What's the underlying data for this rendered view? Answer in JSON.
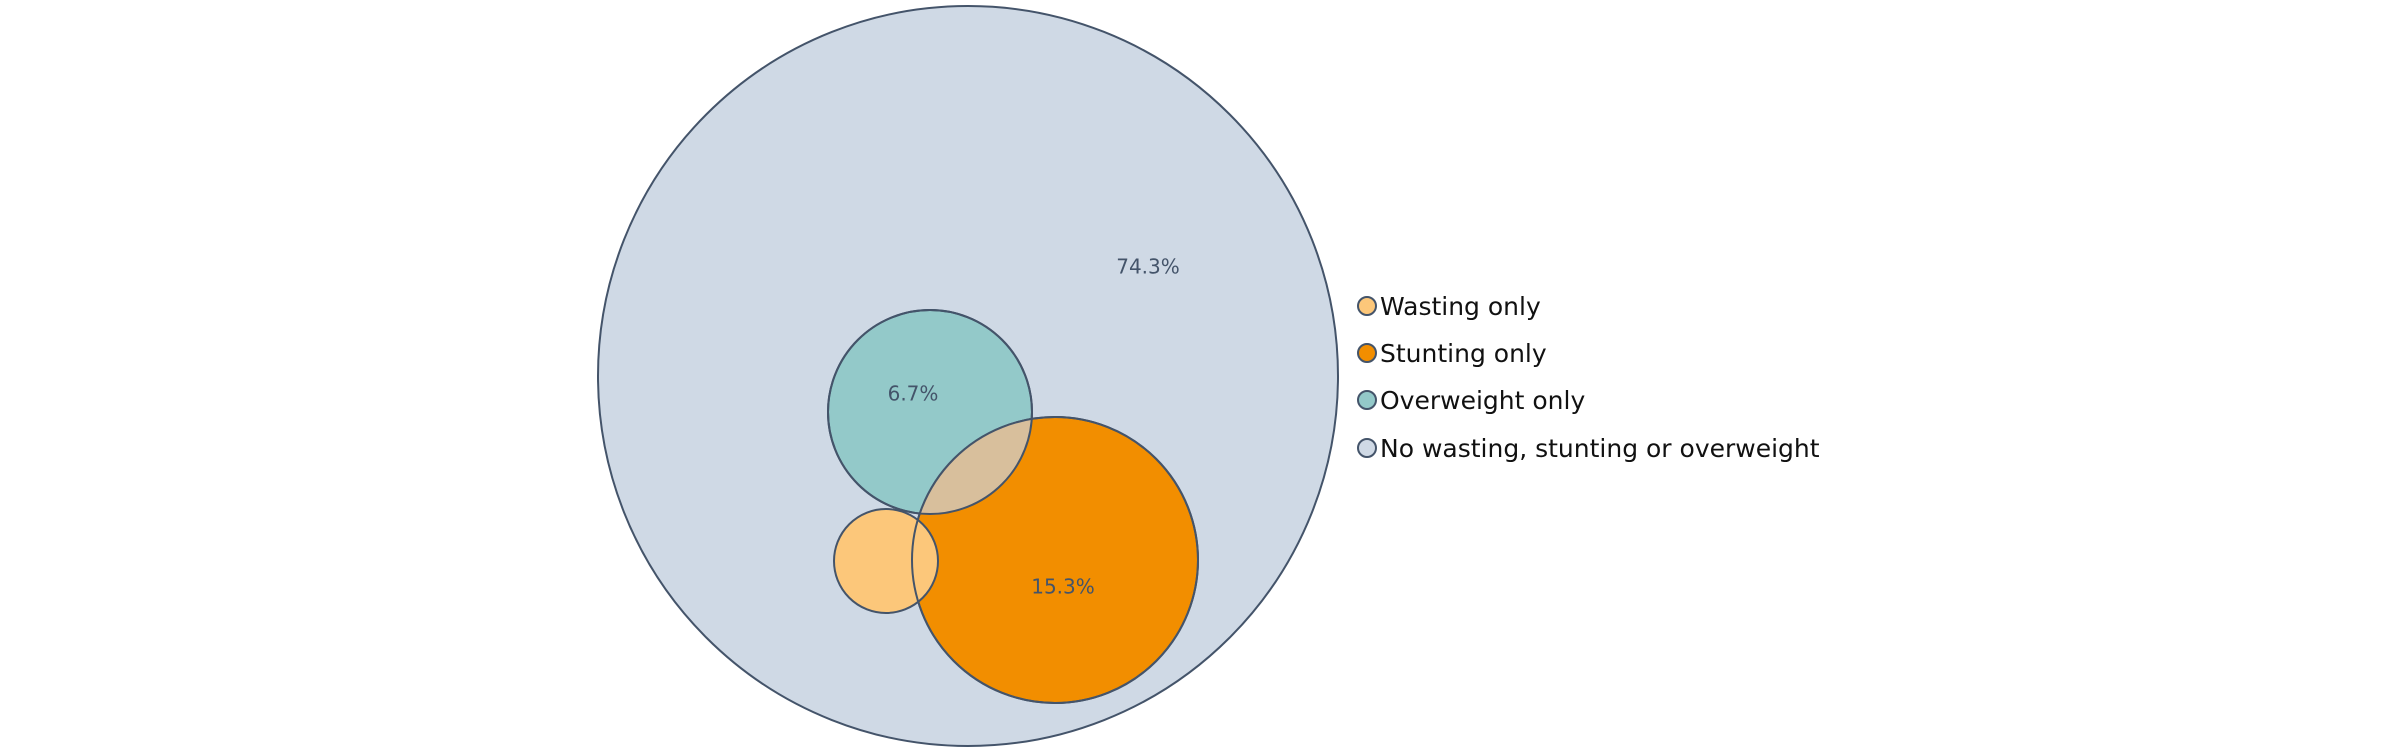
{
  "chart_data": {
    "type": "venn",
    "title": "",
    "sets": [
      {
        "key": "none",
        "name": "No wasting, stunting or overweight",
        "percent": 74.3,
        "label": "74.3%",
        "color": "#cfd9e5"
      },
      {
        "key": "overweight",
        "name": "Overweight only",
        "percent": 6.7,
        "label": "6.7%",
        "color": "#93c9c9"
      },
      {
        "key": "stunting",
        "name": "Stunting only",
        "percent": 15.3,
        "label": "15.3%",
        "color": "#f28e00"
      },
      {
        "key": "wasting",
        "name": "Wasting only",
        "percent": null,
        "label": "",
        "color": "#fcc77a"
      }
    ],
    "overlap_color": "#d8bf9c",
    "legend": {
      "position": "right",
      "order": [
        "wasting",
        "stunting",
        "overweight",
        "none"
      ]
    }
  }
}
